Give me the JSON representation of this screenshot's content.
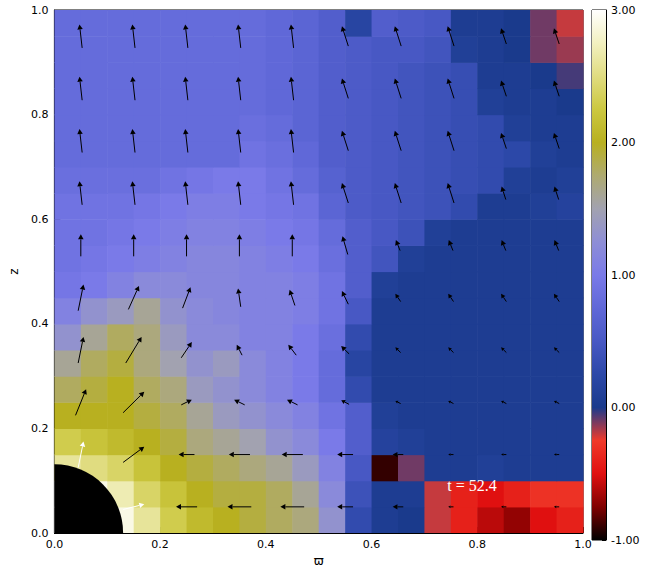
{
  "chart_data": {
    "type": "heatmap",
    "xlabel": "ϖ",
    "ylabel": "z",
    "xlim": [
      0,
      1
    ],
    "ylim": [
      0,
      1
    ],
    "xticks": [
      {
        "value": 0,
        "label": "0.0"
      },
      {
        "value": 0.2,
        "label": "0.2"
      },
      {
        "value": 0.4,
        "label": "0.4"
      },
      {
        "value": 0.6,
        "label": "0.6"
      },
      {
        "value": 0.8,
        "label": "0.8"
      },
      {
        "value": 1,
        "label": "1.0"
      }
    ],
    "yticks": [
      {
        "value": 0,
        "label": "0.0"
      },
      {
        "value": 0.2,
        "label": "0.2"
      },
      {
        "value": 0.4,
        "label": "0.4"
      },
      {
        "value": 0.6,
        "label": "0.6"
      },
      {
        "value": 0.8,
        "label": "0.8"
      },
      {
        "value": 1,
        "label": "1.0"
      }
    ],
    "colorbar": {
      "range": [
        -1,
        3
      ],
      "ticks": [
        {
          "value": -1,
          "label": "-1.00"
        },
        {
          "value": 0,
          "label": "0.00"
        },
        {
          "value": 1,
          "label": "1.00"
        },
        {
          "value": 2,
          "label": "2.00"
        },
        {
          "value": 3,
          "label": "3.00"
        }
      ]
    },
    "annotations": [
      {
        "text": "t = 52.4",
        "x": 0.79,
        "y": 0.09
      }
    ],
    "star_radius": 0.13,
    "cells": {
      "x_edges": [
        0,
        0.05,
        0.1,
        0.15,
        0.2,
        0.25,
        0.3,
        0.35,
        0.4,
        0.45,
        0.5,
        0.55,
        0.6,
        0.65,
        0.7,
        0.75,
        0.8,
        0.85,
        0.9,
        0.95,
        1
      ],
      "z_edges": [
        0,
        0.05,
        0.1,
        0.15,
        0.2,
        0.25,
        0.3,
        0.35,
        0.4,
        0.45,
        0.5,
        0.55,
        0.6,
        0.65,
        0.7,
        0.75,
        0.8,
        0.85,
        0.9,
        0.95,
        1
      ],
      "values": [
        [
          3.0,
          3.0,
          2.9,
          2.6,
          2.3,
          2.1,
          2.0,
          1.9,
          1.8,
          1.7,
          1.3,
          0.3,
          0.05,
          0.0,
          -0.2,
          -0.4,
          -0.6,
          -0.7,
          -0.5,
          -0.4
        ],
        [
          3.0,
          2.9,
          2.7,
          2.4,
          2.2,
          2.0,
          1.9,
          1.9,
          1.8,
          1.6,
          1.2,
          0.4,
          0.05,
          0.05,
          -0.2,
          -0.4,
          -0.5,
          -0.4,
          -0.3,
          -0.3
        ],
        [
          2.6,
          2.5,
          2.4,
          2.2,
          2.0,
          1.9,
          1.8,
          1.7,
          1.6,
          1.4,
          1.1,
          0.5,
          -0.9,
          -0.1,
          0.05,
          0.05,
          0.1,
          0.05,
          0.05,
          0.05
        ],
        [
          2.3,
          2.2,
          2.1,
          2.0,
          1.9,
          1.7,
          1.6,
          1.5,
          1.3,
          1.2,
          1.0,
          0.6,
          0.15,
          0.1,
          0.05,
          0.05,
          0.05,
          0.05,
          0.05,
          0.05
        ],
        [
          2.0,
          2.0,
          2.0,
          1.9,
          1.8,
          1.6,
          1.4,
          1.3,
          1.2,
          1.1,
          0.9,
          0.6,
          0.1,
          0.05,
          0.05,
          0.05,
          0.05,
          0.05,
          0.05,
          0.05
        ],
        [
          1.8,
          1.9,
          2.0,
          1.8,
          1.7,
          1.4,
          1.3,
          1.2,
          1.1,
          1.0,
          0.8,
          0.3,
          0.05,
          0.05,
          0.05,
          0.05,
          0.05,
          0.05,
          0.05,
          0.05
        ],
        [
          1.6,
          1.8,
          1.9,
          1.7,
          1.5,
          1.3,
          1.4,
          1.2,
          1.1,
          1.0,
          0.8,
          0.2,
          0.05,
          0.05,
          0.05,
          0.05,
          0.05,
          0.05,
          0.05,
          0.05
        ],
        [
          1.3,
          1.6,
          1.8,
          1.7,
          1.4,
          1.2,
          1.2,
          1.1,
          1.1,
          1.0,
          0.85,
          0.3,
          0.05,
          0.05,
          0.05,
          0.05,
          0.05,
          0.05,
          0.05,
          0.05
        ],
        [
          1.1,
          1.3,
          1.4,
          1.6,
          1.3,
          1.2,
          1.15,
          1.1,
          1.1,
          1.05,
          0.9,
          0.5,
          0.05,
          0.05,
          0.05,
          0.05,
          0.05,
          0.05,
          0.05,
          0.05
        ],
        [
          0.95,
          1.0,
          1.1,
          1.2,
          1.2,
          1.15,
          1.15,
          1.1,
          1.1,
          1.05,
          0.9,
          0.6,
          0.1,
          0.05,
          0.05,
          0.05,
          0.05,
          0.05,
          0.05,
          0.05
        ],
        [
          0.9,
          0.95,
          1.0,
          1.05,
          1.1,
          1.15,
          1.15,
          1.1,
          1.05,
          1.0,
          0.85,
          0.6,
          0.45,
          0.1,
          0.05,
          0.05,
          0.05,
          0.05,
          0.05,
          0.05
        ],
        [
          0.9,
          0.9,
          0.95,
          1.0,
          1.05,
          1.1,
          1.1,
          1.05,
          1.0,
          0.95,
          0.8,
          0.6,
          0.5,
          0.4,
          0.1,
          0.05,
          0.05,
          0.05,
          0.05,
          0.05
        ],
        [
          0.9,
          0.9,
          0.9,
          0.95,
          1.0,
          1.05,
          1.05,
          1.0,
          0.95,
          0.9,
          0.7,
          0.55,
          0.5,
          0.45,
          0.4,
          0.3,
          0.05,
          0.05,
          0.1,
          0.15
        ],
        [
          0.85,
          0.85,
          0.85,
          0.85,
          0.9,
          0.95,
          1.0,
          1.0,
          0.9,
          0.8,
          0.65,
          0.55,
          0.5,
          0.45,
          0.4,
          0.35,
          0.3,
          0.1,
          0.05,
          0.1
        ],
        [
          0.8,
          0.8,
          0.8,
          0.8,
          0.8,
          0.8,
          0.8,
          0.9,
          0.85,
          0.75,
          0.6,
          0.55,
          0.5,
          0.45,
          0.4,
          0.35,
          0.3,
          0.25,
          0.1,
          0.05
        ],
        [
          0.8,
          0.8,
          0.8,
          0.8,
          0.8,
          0.8,
          0.8,
          0.85,
          0.8,
          0.7,
          0.6,
          0.55,
          0.5,
          0.45,
          0.4,
          0.35,
          0.3,
          0.1,
          0.05,
          0.05
        ],
        [
          0.8,
          0.8,
          0.8,
          0.8,
          0.8,
          0.8,
          0.8,
          0.8,
          0.75,
          0.7,
          0.6,
          0.55,
          0.5,
          0.45,
          0.4,
          0.35,
          0.1,
          0.05,
          0.05,
          0.0
        ],
        [
          0.8,
          0.8,
          0.8,
          0.8,
          0.8,
          0.8,
          0.8,
          0.8,
          0.75,
          0.7,
          0.6,
          0.55,
          0.5,
          0.45,
          0.4,
          0.35,
          0.05,
          0.05,
          0.0,
          -0.05
        ],
        [
          0.8,
          0.8,
          0.8,
          0.8,
          0.8,
          0.8,
          0.8,
          0.8,
          0.75,
          0.7,
          0.6,
          0.55,
          0.5,
          0.5,
          0.45,
          0.1,
          0.05,
          0.0,
          -0.1,
          -0.15
        ],
        [
          0.8,
          0.8,
          0.8,
          0.8,
          0.8,
          0.8,
          0.8,
          0.8,
          0.75,
          0.7,
          0.6,
          0.2,
          0.6,
          0.55,
          0.5,
          0.05,
          0.05,
          0.0,
          -0.1,
          -0.2
        ]
      ]
    },
    "vectors": [
      [
        0.05,
        0.95,
        -0.005,
        0.045
      ],
      [
        0.15,
        0.95,
        -0.005,
        0.045
      ],
      [
        0.25,
        0.95,
        -0.005,
        0.045
      ],
      [
        0.35,
        0.95,
        -0.005,
        0.045
      ],
      [
        0.45,
        0.95,
        -0.005,
        0.045
      ],
      [
        0.55,
        0.95,
        -0.012,
        0.038
      ],
      [
        0.65,
        0.95,
        -0.012,
        0.038
      ],
      [
        0.75,
        0.95,
        -0.012,
        0.038
      ],
      [
        0.85,
        0.95,
        -0.01,
        0.03
      ],
      [
        0.95,
        0.95,
        -0.01,
        0.03
      ],
      [
        0.05,
        0.85,
        -0.005,
        0.045
      ],
      [
        0.15,
        0.85,
        -0.005,
        0.045
      ],
      [
        0.25,
        0.85,
        -0.005,
        0.045
      ],
      [
        0.35,
        0.85,
        -0.005,
        0.045
      ],
      [
        0.45,
        0.85,
        -0.005,
        0.045
      ],
      [
        0.55,
        0.85,
        -0.012,
        0.038
      ],
      [
        0.65,
        0.85,
        -0.012,
        0.038
      ],
      [
        0.75,
        0.85,
        -0.012,
        0.038
      ],
      [
        0.85,
        0.85,
        -0.01,
        0.03
      ],
      [
        0.95,
        0.85,
        -0.01,
        0.03
      ],
      [
        0.05,
        0.75,
        -0.005,
        0.045
      ],
      [
        0.15,
        0.75,
        -0.005,
        0.045
      ],
      [
        0.25,
        0.75,
        -0.005,
        0.045
      ],
      [
        0.35,
        0.75,
        -0.005,
        0.045
      ],
      [
        0.45,
        0.75,
        -0.005,
        0.045
      ],
      [
        0.55,
        0.75,
        -0.012,
        0.038
      ],
      [
        0.65,
        0.75,
        -0.012,
        0.038
      ],
      [
        0.75,
        0.75,
        -0.012,
        0.038
      ],
      [
        0.85,
        0.75,
        -0.01,
        0.03
      ],
      [
        0.95,
        0.75,
        -0.01,
        0.03
      ],
      [
        0.05,
        0.65,
        -0.005,
        0.045
      ],
      [
        0.15,
        0.65,
        -0.005,
        0.045
      ],
      [
        0.25,
        0.65,
        -0.005,
        0.045
      ],
      [
        0.35,
        0.65,
        -0.005,
        0.045
      ],
      [
        0.45,
        0.65,
        -0.005,
        0.045
      ],
      [
        0.55,
        0.65,
        -0.012,
        0.038
      ],
      [
        0.65,
        0.65,
        -0.012,
        0.038
      ],
      [
        0.75,
        0.65,
        -0.012,
        0.038
      ],
      [
        0.85,
        0.65,
        -0.008,
        0.025
      ],
      [
        0.95,
        0.65,
        -0.008,
        0.025
      ],
      [
        0.05,
        0.55,
        0.0,
        0.042
      ],
      [
        0.15,
        0.55,
        0.0,
        0.042
      ],
      [
        0.25,
        0.55,
        0.0,
        0.042
      ],
      [
        0.35,
        0.55,
        0.0,
        0.042
      ],
      [
        0.45,
        0.55,
        0.0,
        0.042
      ],
      [
        0.55,
        0.55,
        -0.01,
        0.035
      ],
      [
        0.65,
        0.55,
        -0.008,
        0.02
      ],
      [
        0.75,
        0.55,
        -0.008,
        0.02
      ],
      [
        0.85,
        0.55,
        -0.008,
        0.02
      ],
      [
        0.95,
        0.55,
        -0.008,
        0.02
      ],
      [
        0.05,
        0.45,
        0.01,
        0.05
      ],
      [
        0.15,
        0.45,
        0.02,
        0.045
      ],
      [
        0.25,
        0.45,
        0.015,
        0.04
      ],
      [
        0.35,
        0.45,
        -0.005,
        0.035
      ],
      [
        0.45,
        0.45,
        -0.01,
        0.03
      ],
      [
        0.55,
        0.45,
        -0.012,
        0.025
      ],
      [
        0.65,
        0.45,
        -0.01,
        0.015
      ],
      [
        0.75,
        0.45,
        -0.01,
        0.015
      ],
      [
        0.85,
        0.45,
        -0.01,
        0.015
      ],
      [
        0.95,
        0.45,
        -0.01,
        0.015
      ],
      [
        0.05,
        0.35,
        0.01,
        0.05
      ],
      [
        0.15,
        0.35,
        0.03,
        0.05
      ],
      [
        0.25,
        0.35,
        0.02,
        0.03
      ],
      [
        0.35,
        0.35,
        -0.01,
        0.02
      ],
      [
        0.45,
        0.35,
        -0.015,
        0.02
      ],
      [
        0.55,
        0.35,
        -0.015,
        0.015
      ],
      [
        0.65,
        0.35,
        -0.01,
        0.01
      ],
      [
        0.75,
        0.35,
        -0.01,
        0.01
      ],
      [
        0.85,
        0.35,
        -0.01,
        0.01
      ],
      [
        0.95,
        0.35,
        -0.01,
        0.01
      ],
      [
        0.05,
        0.25,
        0.02,
        0.05
      ],
      [
        0.15,
        0.25,
        0.04,
        0.04
      ],
      [
        0.25,
        0.25,
        0.02,
        0.01
      ],
      [
        0.35,
        0.25,
        -0.02,
        0.01
      ],
      [
        0.45,
        0.25,
        -0.02,
        0.01
      ],
      [
        0.55,
        0.25,
        -0.015,
        0.008
      ],
      [
        0.65,
        0.25,
        -0.01,
        0.005
      ],
      [
        0.75,
        0.25,
        -0.01,
        0.005
      ],
      [
        0.85,
        0.25,
        -0.01,
        0.005
      ],
      [
        0.95,
        0.25,
        -0.01,
        0.005
      ],
      [
        0.05,
        0.15,
        0.01,
        0.05
      ],
      [
        0.15,
        0.15,
        0.04,
        0.03
      ],
      [
        0.25,
        0.15,
        -0.03,
        0.0
      ],
      [
        0.35,
        0.15,
        -0.04,
        0.0
      ],
      [
        0.45,
        0.15,
        -0.04,
        0.0
      ],
      [
        0.55,
        0.15,
        -0.03,
        0.0
      ],
      [
        0.65,
        0.15,
        -0.02,
        0.0
      ],
      [
        0.75,
        0.15,
        -0.01,
        0.0
      ],
      [
        0.85,
        0.15,
        -0.01,
        0.0
      ],
      [
        0.95,
        0.15,
        -0.01,
        0.0
      ],
      [
        0.15,
        0.05,
        0.04,
        0.01
      ],
      [
        0.25,
        0.05,
        -0.04,
        0.0
      ],
      [
        0.35,
        0.05,
        -0.045,
        0.0
      ],
      [
        0.45,
        0.05,
        -0.045,
        0.0
      ],
      [
        0.55,
        0.05,
        -0.03,
        0.0
      ],
      [
        0.65,
        0.05,
        -0.02,
        0.0
      ],
      [
        0.75,
        0.05,
        -0.01,
        0.0
      ],
      [
        0.85,
        0.05,
        -0.01,
        0.0
      ],
      [
        0.95,
        0.05,
        -0.01,
        0.0
      ]
    ]
  }
}
